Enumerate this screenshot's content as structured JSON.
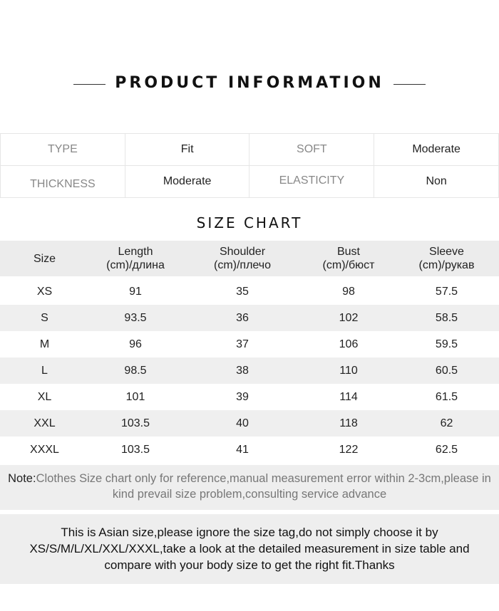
{
  "header": {
    "title": "PRODUCT INFORMATION"
  },
  "info": [
    [
      {
        "k": "TYPE",
        "v": "Fit"
      },
      {
        "k": "SOFT",
        "v": "Moderate"
      }
    ],
    [
      {
        "k": "THICKNESS",
        "v": "Moderate"
      },
      {
        "k": "ELASTICITY",
        "v": "Non"
      }
    ]
  ],
  "size_chart": {
    "title": "SIZE CHART",
    "columns": [
      [
        "Size",
        ""
      ],
      [
        "Length",
        "(cm)/длина"
      ],
      [
        "Shoulder",
        "(cm)/плечо"
      ],
      [
        "Bust",
        "(cm)/бюст"
      ],
      [
        "Sleeve",
        "(cm)/рукав"
      ]
    ],
    "rows": [
      [
        "XS",
        "91",
        "35",
        "98",
        "57.5"
      ],
      [
        "S",
        "93.5",
        "36",
        "102",
        "58.5"
      ],
      [
        "M",
        "96",
        "37",
        "106",
        "59.5"
      ],
      [
        "L",
        "98.5",
        "38",
        "110",
        "60.5"
      ],
      [
        "XL",
        "101",
        "39",
        "114",
        "61.5"
      ],
      [
        "XXL",
        "103.5",
        "40",
        "118",
        "62"
      ],
      [
        "XXXL",
        "103.5",
        "41",
        "122",
        "62.5"
      ]
    ]
  },
  "note": {
    "label": "Note:",
    "text": "Clothes Size chart only for reference,manual measurement error within 2-3cm,please in kind prevail size problem,consulting service advance"
  },
  "notice": "This is Asian size,please ignore the size tag,do not simply choose it by XS/S/M/L/XL/XXL/XXXL,take a look at the detailed measurement in size table and compare with your body size to get the right fit.Thanks"
}
